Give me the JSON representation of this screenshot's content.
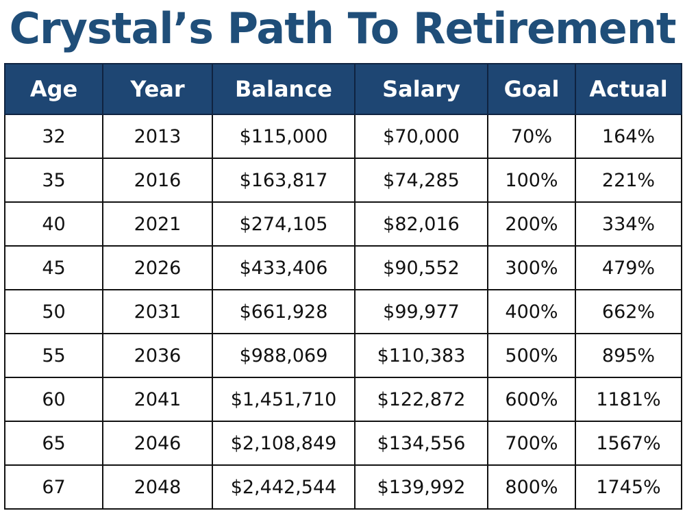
{
  "chart_data": {
    "type": "table",
    "title": "Crystal’s Path To Retirement",
    "columns": [
      "Age",
      "Year",
      "Balance",
      "Salary",
      "Goal",
      "Actual"
    ],
    "rows": [
      [
        "32",
        "2013",
        "$115,000",
        "$70,000",
        "70%",
        "164%"
      ],
      [
        "35",
        "2016",
        "$163,817",
        "$74,285",
        "100%",
        "221%"
      ],
      [
        "40",
        "2021",
        "$274,105",
        "$82,016",
        "200%",
        "334%"
      ],
      [
        "45",
        "2026",
        "$433,406",
        "$90,552",
        "300%",
        "479%"
      ],
      [
        "50",
        "2031",
        "$661,928",
        "$99,977",
        "400%",
        "662%"
      ],
      [
        "55",
        "2036",
        "$988,069",
        "$110,383",
        "500%",
        "895%"
      ],
      [
        "60",
        "2041",
        "$1,451,710",
        "$122,872",
        "600%",
        "1181%"
      ],
      [
        "65",
        "2046",
        "$2,108,849",
        "$134,556",
        "700%",
        "1567%"
      ],
      [
        "67",
        "2048",
        "$2,442,544",
        "$139,992",
        "800%",
        "1745%"
      ]
    ],
    "colors": {
      "title": "#1f4e79",
      "header_background": "#1e4673",
      "header_text": "#ffffff",
      "cell_text": "#111111",
      "border": "#111111"
    }
  }
}
